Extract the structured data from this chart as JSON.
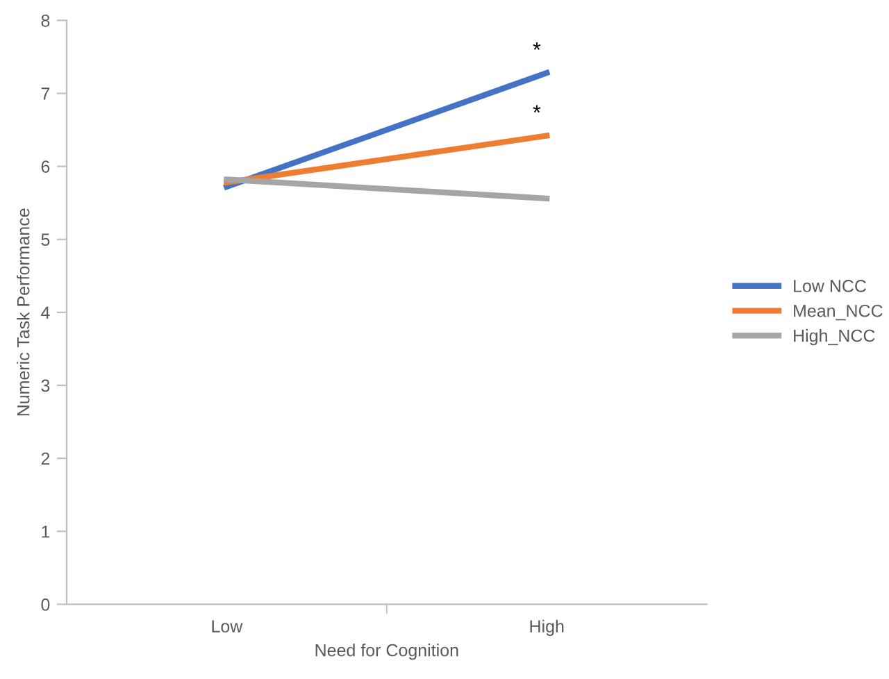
{
  "chart_data": {
    "type": "line",
    "xlabel": "Need for Cognition",
    "ylabel": "Numeric Task Performance",
    "categories": [
      "Low",
      "High"
    ],
    "series": [
      {
        "name": "Low NCC",
        "color": "#4472c4",
        "values": [
          5.72,
          7.28
        ]
      },
      {
        "name": "Mean_NCC",
        "color": "#ed7d31",
        "values": [
          5.78,
          6.42
        ]
      },
      {
        "name": "High_NCC",
        "color": "#a5a5a5",
        "values": [
          5.82,
          5.56
        ]
      }
    ],
    "annotations": [
      "*",
      "*"
    ],
    "ylim": [
      0,
      8
    ],
    "yticks": [
      0,
      1,
      2,
      3,
      4,
      5,
      6,
      7,
      8
    ],
    "grid": false,
    "legend": "right",
    "marker": "none",
    "line_style": "solid"
  }
}
